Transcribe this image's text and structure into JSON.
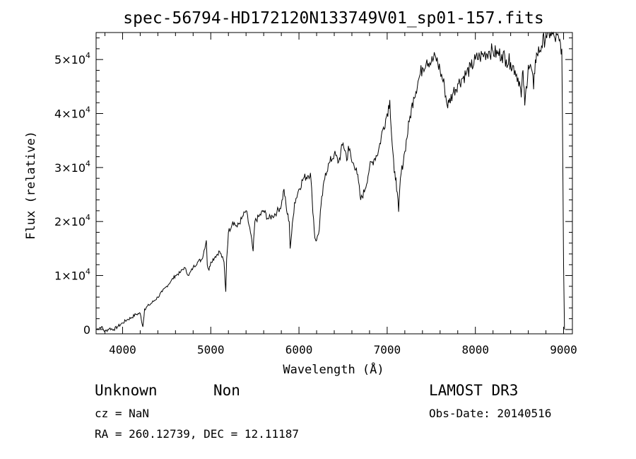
{
  "chart_data": {
    "type": "line",
    "title": "spec-56794-HD172120N133749V01_sp01-157.fits",
    "xlabel": "Wavelength (Å)",
    "ylabel": "Flux (relative)",
    "xlim": [
      3700,
      9100
    ],
    "ylim": [
      -800,
      55000
    ],
    "x_ticks": [
      4000,
      5000,
      6000,
      7000,
      8000,
      9000
    ],
    "x_tick_labels": [
      "4000",
      "5000",
      "6000",
      "7000",
      "8000",
      "9000"
    ],
    "y_ticks": [
      0,
      10000,
      20000,
      30000,
      40000,
      50000
    ],
    "y_tick_labels": [
      {
        "mantissa": "0",
        "exp": ""
      },
      {
        "mantissa": "1×10",
        "exp": "4"
      },
      {
        "mantissa": "2×10",
        "exp": "4"
      },
      {
        "mantissa": "3×10",
        "exp": "4"
      },
      {
        "mantissa": "4×10",
        "exp": "4"
      },
      {
        "mantissa": "5×10",
        "exp": "4"
      }
    ],
    "grid": false,
    "series": [
      {
        "color": "#000000",
        "x": [
          3700,
          3760,
          3800,
          3850,
          3900,
          3950,
          4000,
          4050,
          4100,
          4150,
          4200,
          4230,
          4250,
          4300,
          4350,
          4400,
          4450,
          4500,
          4550,
          4600,
          4650,
          4700,
          4750,
          4800,
          4850,
          4900,
          4950,
          4960,
          4980,
          5000,
          5050,
          5100,
          5150,
          5170,
          5180,
          5200,
          5250,
          5300,
          5350,
          5400,
          5450,
          5480,
          5500,
          5550,
          5600,
          5650,
          5700,
          5750,
          5800,
          5830,
          5860,
          5890,
          5900,
          5950,
          6000,
          6050,
          6100,
          6130,
          6150,
          6180,
          6200,
          6230,
          6250,
          6300,
          6350,
          6400,
          6450,
          6500,
          6550,
          6560,
          6600,
          6650,
          6700,
          6750,
          6800,
          6850,
          6900,
          6950,
          7000,
          7030,
          7050,
          7080,
          7100,
          7130,
          7150,
          7200,
          7250,
          7300,
          7350,
          7400,
          7450,
          7500,
          7550,
          7600,
          7650,
          7680,
          7700,
          7750,
          7800,
          7850,
          7900,
          7950,
          8000,
          8050,
          8100,
          8150,
          8200,
          8250,
          8300,
          8350,
          8400,
          8450,
          8500,
          8520,
          8540,
          8560,
          8600,
          8640,
          8660,
          8680,
          8700,
          8750,
          8800,
          8850,
          8900,
          8950,
          8980,
          9000,
          9010
        ],
        "y": [
          0,
          500,
          -400,
          200,
          0,
          600,
          1200,
          1800,
          2200,
          2800,
          3000,
          500,
          3800,
          4500,
          5200,
          6000,
          7000,
          8000,
          9000,
          10000,
          10500,
          11500,
          10000,
          11500,
          12500,
          13000,
          16500,
          12000,
          11000,
          12500,
          13500,
          14500,
          12500,
          7000,
          13000,
          18000,
          20000,
          19000,
          20500,
          22000,
          18000,
          14500,
          20000,
          21000,
          22000,
          20500,
          21000,
          21800,
          23000,
          26000,
          22000,
          20000,
          15000,
          23500,
          26000,
          28000,
          28500,
          29000,
          24000,
          17000,
          16500,
          18500,
          23000,
          29000,
          31000,
          32500,
          31000,
          34500,
          31500,
          34000,
          31000,
          30000,
          24000,
          26000,
          30000,
          31500,
          33000,
          37000,
          40000,
          42500,
          36000,
          29000,
          28000,
          21800,
          28000,
          33000,
          38500,
          43000,
          46000,
          48500,
          50000,
          49500,
          50500,
          48000,
          45000,
          41500,
          42000,
          44000,
          45500,
          46500,
          47500,
          48500,
          50000,
          50500,
          51000,
          51500,
          51500,
          51000,
          51000,
          50000,
          49500,
          48000,
          46000,
          43000,
          48000,
          41500,
          49000,
          48000,
          44500,
          50000,
          51000,
          52500,
          54500,
          55000,
          54000,
          53500,
          52000,
          12000,
          0
        ]
      }
    ]
  },
  "annotations": {
    "object_name": "Unknown",
    "object_class": "Non",
    "survey": "LAMOST DR3",
    "cz": "cz = NaN",
    "obs_date": "Obs-Date: 20140516",
    "coords": "RA = 260.12739, DEC =  12.11187"
  }
}
